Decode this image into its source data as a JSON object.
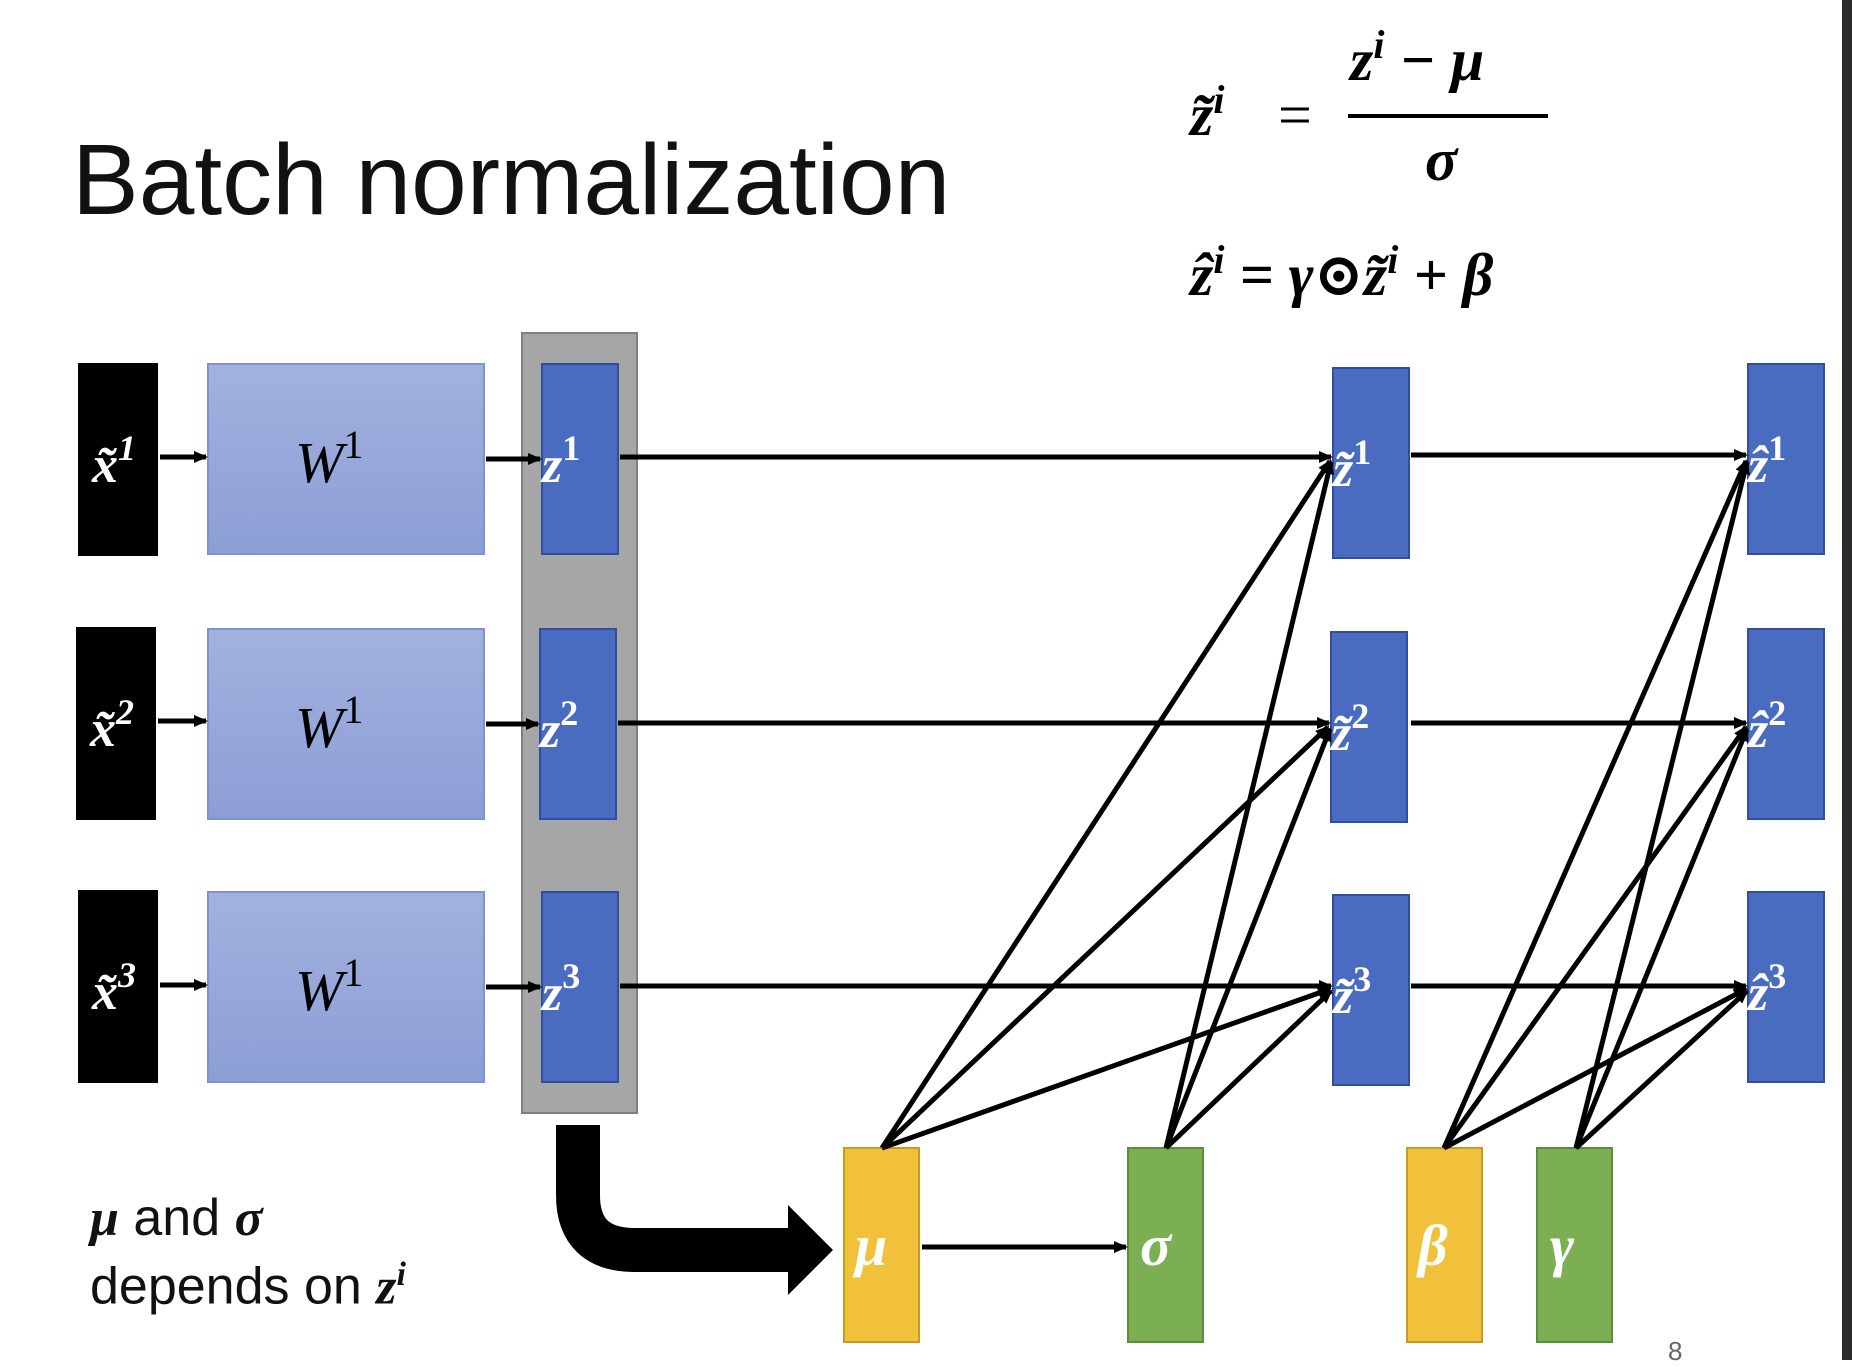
{
  "slide": {
    "title": "Batch normalization",
    "page_number": "8"
  },
  "formulas": {
    "norm_lhs": "z̃",
    "norm_lhs_sup": "i",
    "norm_equals": "=",
    "norm_numerator_z": "z",
    "norm_numerator_sup": "i",
    "norm_numerator_rest": " − μ",
    "norm_denominator": "σ",
    "affine_lhs": "ẑ",
    "affine_lhs_sup": "i",
    "affine_rhs": " = γ⊙z̃",
    "affine_rhs_sup": "i",
    "affine_rhs_rest": " + β"
  },
  "inputs": {
    "items": [
      {
        "base": "x̃",
        "sup": "1"
      },
      {
        "base": "x̃",
        "sup": "2"
      },
      {
        "base": "x̃",
        "sup": "3"
      }
    ]
  },
  "weights": {
    "items": [
      {
        "base": "W",
        "sup": "1"
      },
      {
        "base": "W",
        "sup": "1"
      },
      {
        "base": "W",
        "sup": "1"
      }
    ]
  },
  "z_nodes": {
    "items": [
      {
        "base": "z",
        "sup": "1"
      },
      {
        "base": "z",
        "sup": "2"
      },
      {
        "base": "z",
        "sup": "3"
      }
    ]
  },
  "z_tilde_nodes": {
    "items": [
      {
        "base": "z̃",
        "sup": "1"
      },
      {
        "base": "z̃",
        "sup": "2"
      },
      {
        "base": "z̃",
        "sup": "3"
      }
    ]
  },
  "z_hat_nodes": {
    "items": [
      {
        "base": "ẑ",
        "sup": "1"
      },
      {
        "base": "ẑ",
        "sup": "2"
      },
      {
        "base": "ẑ",
        "sup": "3"
      }
    ]
  },
  "stats": {
    "mu": "μ",
    "sigma": "σ",
    "beta": "β",
    "gamma": "γ"
  },
  "note": {
    "mu": "μ",
    "and": " and ",
    "sigma": "σ",
    "depends": "depends on ",
    "z": "z",
    "sup": "i"
  },
  "colors": {
    "input_box": "#000000",
    "weight_box": "#95A6D8",
    "z_box": "#4A6CC0",
    "batch_bg": "#A6A6A6",
    "mean_box": "#F2C13B",
    "std_box": "#7CAE54",
    "beta_box": "#F2C13B",
    "gamma_box": "#7CAE54"
  }
}
